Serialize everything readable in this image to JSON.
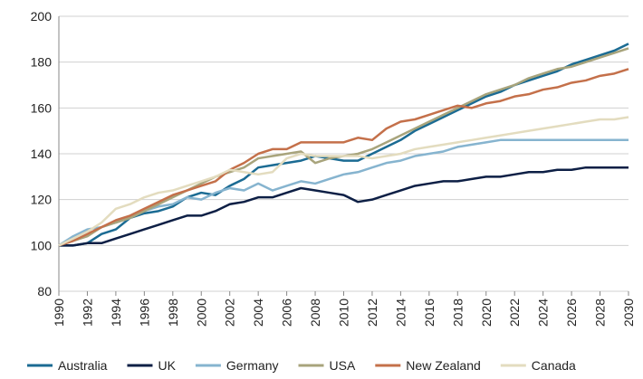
{
  "chart_data": {
    "type": "line",
    "x": [
      1990,
      1991,
      1992,
      1993,
      1994,
      1995,
      1996,
      1997,
      1998,
      1999,
      2000,
      2001,
      2002,
      2003,
      2004,
      2005,
      2006,
      2007,
      2008,
      2009,
      2010,
      2011,
      2012,
      2013,
      2014,
      2015,
      2016,
      2017,
      2018,
      2019,
      2020,
      2021,
      2022,
      2023,
      2024,
      2025,
      2026,
      2027,
      2028,
      2029,
      2030
    ],
    "xlim": [
      1990,
      2030
    ],
    "xticks": [
      1990,
      1992,
      1994,
      1996,
      1998,
      2000,
      2002,
      2004,
      2006,
      2008,
      2010,
      2012,
      2014,
      2016,
      2018,
      2020,
      2022,
      2024,
      2026,
      2028,
      2030
    ],
    "ylim": [
      80,
      200
    ],
    "yticks": [
      80,
      100,
      120,
      140,
      160,
      180,
      200
    ],
    "grid": true,
    "legend": "bottom",
    "series": [
      {
        "name": "Australia",
        "color": "#1b6b93",
        "values": [
          100,
          100,
          101,
          105,
          107,
          112,
          114,
          115,
          117,
          121,
          123,
          122,
          126,
          129,
          134,
          135,
          136,
          137,
          139,
          138,
          137,
          137,
          140,
          143,
          146,
          150,
          153,
          156,
          159,
          162,
          165,
          167,
          170,
          172,
          174,
          176,
          179,
          181,
          183,
          185,
          188
        ]
      },
      {
        "name": "UK",
        "color": "#0d1f45",
        "values": [
          100,
          100,
          101,
          101,
          103,
          105,
          107,
          109,
          111,
          113,
          113,
          115,
          118,
          119,
          121,
          121,
          123,
          125,
          124,
          123,
          122,
          119,
          120,
          122,
          124,
          126,
          127,
          128,
          128,
          129,
          130,
          130,
          131,
          132,
          132,
          133,
          133,
          134,
          134,
          134,
          134
        ]
      },
      {
        "name": "Germany",
        "color": "#86b4cf",
        "values": [
          100,
          104,
          107,
          108,
          110,
          112,
          115,
          117,
          118,
          121,
          120,
          123,
          125,
          124,
          127,
          124,
          126,
          128,
          127,
          129,
          131,
          132,
          134,
          136,
          137,
          139,
          140,
          141,
          143,
          144,
          145,
          146,
          146,
          146,
          146,
          146,
          146,
          146,
          146,
          146,
          146
        ]
      },
      {
        "name": "USA",
        "color": "#a8a47c",
        "values": [
          100,
          102,
          104,
          108,
          110,
          112,
          115,
          118,
          121,
          124,
          127,
          130,
          132,
          134,
          138,
          139,
          140,
          141,
          136,
          138,
          139,
          140,
          142,
          145,
          148,
          151,
          154,
          157,
          160,
          163,
          166,
          168,
          170,
          173,
          175,
          177,
          178,
          180,
          182,
          184,
          186
        ]
      },
      {
        "name": "New Zealand",
        "color": "#c4704a",
        "values": [
          100,
          102,
          105,
          108,
          111,
          113,
          116,
          119,
          122,
          124,
          126,
          128,
          133,
          136,
          140,
          142,
          142,
          145,
          145,
          145,
          145,
          147,
          146,
          151,
          154,
          155,
          157,
          159,
          161,
          160,
          162,
          163,
          165,
          166,
          168,
          169,
          171,
          172,
          174,
          175,
          177
        ]
      },
      {
        "name": "Canada",
        "color": "#e3dcbf",
        "values": [
          100,
          103,
          106,
          110,
          116,
          118,
          121,
          123,
          124,
          126,
          128,
          130,
          133,
          132,
          131,
          132,
          138,
          140,
          139,
          139,
          139,
          139,
          138,
          139,
          140,
          142,
          143,
          144,
          145,
          146,
          147,
          148,
          149,
          150,
          151,
          152,
          153,
          154,
          155,
          155,
          156
        ]
      }
    ]
  }
}
